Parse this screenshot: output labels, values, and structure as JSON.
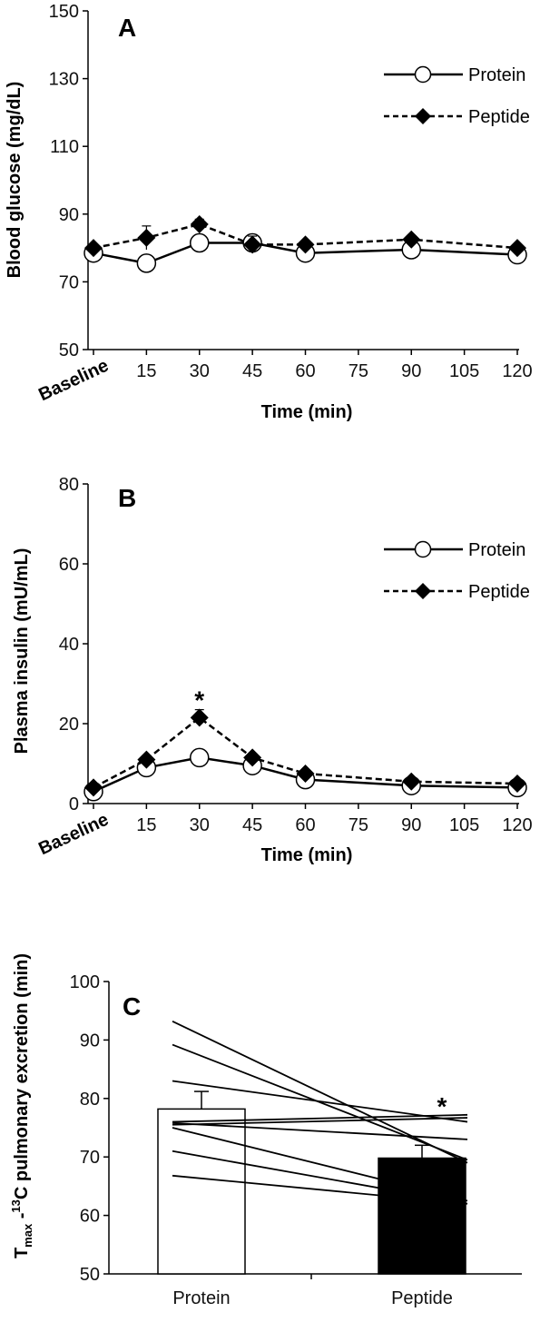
{
  "chart_data": [
    {
      "type": "line",
      "panel_label": "A",
      "xlabel": "Time (min)",
      "ylabel": "Blood glucose (mg/dL)",
      "ylim": [
        50,
        150
      ],
      "yticks": [
        "50",
        "70",
        "90",
        "110",
        "130",
        "150"
      ],
      "xlim": [
        0,
        120
      ],
      "xticks": [
        {
          "value": 0,
          "label": "Baseline",
          "rotated": true
        },
        {
          "value": 15,
          "label": "15"
        },
        {
          "value": 30,
          "label": "30"
        },
        {
          "value": 45,
          "label": "45"
        },
        {
          "value": 60,
          "label": "60"
        },
        {
          "value": 75,
          "label": "75"
        },
        {
          "value": 90,
          "label": "90"
        },
        {
          "value": 105,
          "label": "105"
        },
        {
          "value": 120,
          "label": "120"
        }
      ],
      "x": [
        0,
        15,
        30,
        45,
        60,
        90,
        120
      ],
      "series": [
        {
          "name": "Protein",
          "marker": "open-circle",
          "line": "solid",
          "values": [
            78.5,
            75.5,
            81.5,
            81.5,
            78.5,
            79.5,
            78.0
          ],
          "errors": [
            1.0,
            1.5,
            1.5,
            1.5,
            1.0,
            1.0,
            1.0
          ]
        },
        {
          "name": "Peptide",
          "marker": "filled-diamond",
          "line": "dashed",
          "values": [
            80.0,
            83.0,
            87.0,
            81.0,
            81.0,
            82.5,
            80.0
          ],
          "errors": [
            1.0,
            3.5,
            1.5,
            2.5,
            1.0,
            1.0,
            1.0
          ]
        }
      ],
      "legend_position": "top-right",
      "significance": []
    },
    {
      "type": "line",
      "panel_label": "B",
      "xlabel": "Time (min)",
      "ylabel": "Plasma insulin  (mU/mL)",
      "ylim": [
        0,
        80
      ],
      "yticks": [
        "0",
        "20",
        "40",
        "60",
        "80"
      ],
      "xlim": [
        0,
        120
      ],
      "xticks": [
        {
          "value": 0,
          "label": "Baseline",
          "rotated": true
        },
        {
          "value": 15,
          "label": "15"
        },
        {
          "value": 30,
          "label": "30"
        },
        {
          "value": 45,
          "label": "45"
        },
        {
          "value": 60,
          "label": "60"
        },
        {
          "value": 75,
          "label": "75"
        },
        {
          "value": 90,
          "label": "90"
        },
        {
          "value": 105,
          "label": "105"
        },
        {
          "value": 120,
          "label": "120"
        }
      ],
      "x": [
        0,
        15,
        30,
        45,
        60,
        90,
        120
      ],
      "series": [
        {
          "name": "Protein",
          "marker": "open-circle",
          "line": "solid",
          "values": [
            3.0,
            9.0,
            11.5,
            9.5,
            6.0,
            4.5,
            4.0
          ],
          "errors": [
            0.5,
            1.0,
            1.5,
            1.0,
            0.5,
            0.5,
            0.5
          ]
        },
        {
          "name": "Peptide",
          "marker": "filled-diamond",
          "line": "dashed",
          "values": [
            4.0,
            11.0,
            21.5,
            11.5,
            7.5,
            5.5,
            5.0
          ],
          "errors": [
            0.5,
            1.0,
            2.0,
            1.0,
            0.5,
            0.5,
            0.5
          ]
        }
      ],
      "legend_position": "top-right",
      "significance": [
        {
          "x": 30,
          "y": 26,
          "label": "*"
        }
      ]
    },
    {
      "type": "bar",
      "panel_label": "C",
      "ylabel_main": "T",
      "ylabel_sub": "max",
      "ylabel_mid": " -",
      "ylabel_sup": "13",
      "ylabel_rest": "C pulmonary excretion (min)",
      "ylim": [
        50,
        100
      ],
      "yticks": [
        "50",
        "60",
        "70",
        "80",
        "90",
        "100"
      ],
      "categories": [
        "Protein",
        "Peptide"
      ],
      "values": [
        78.2,
        69.8
      ],
      "errors": [
        3.0,
        2.2
      ],
      "bar_fills": [
        "#ffffff",
        "#000000"
      ],
      "individual_lines": [
        [
          93.2,
          69.0
        ],
        [
          89.2,
          69.5
        ],
        [
          83.0,
          76.0
        ],
        [
          76.0,
          77.2
        ],
        [
          75.5,
          76.7
        ],
        [
          75.8,
          73.0
        ],
        [
          75.0,
          62.5
        ],
        [
          71.0,
          62.0
        ],
        [
          66.8,
          62.0
        ]
      ],
      "significance": [
        {
          "category": "Peptide",
          "y": 79,
          "label": "*"
        }
      ]
    }
  ]
}
